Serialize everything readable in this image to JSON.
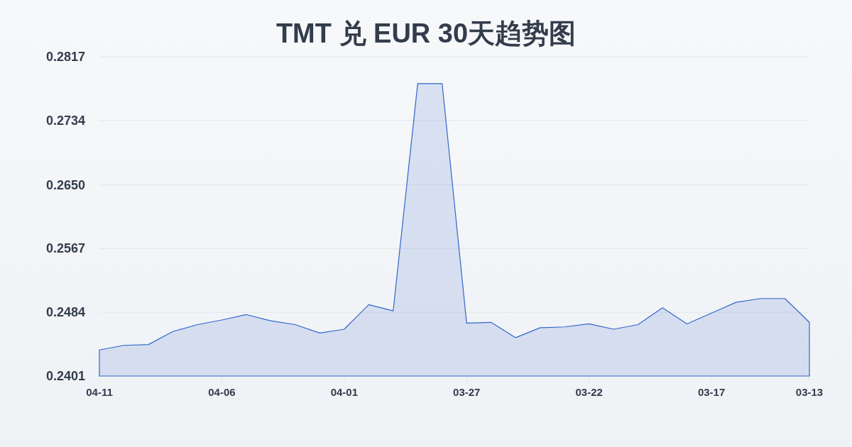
{
  "chart_data": {
    "type": "area",
    "title": "TMT 兑 EUR 30天趋势图",
    "x": [
      "--04-11",
      "--04-10",
      "--04-09",
      "--04-08",
      "--04-07",
      "--04-06",
      "--04-05",
      "--04-04",
      "--04-03",
      "--04-02",
      "--04-01",
      "--03-31",
      "--03-30",
      "--03-29",
      "--03-28",
      "--03-27",
      "--03-26",
      "--03-25",
      "--03-24",
      "--03-23",
      "--03-22",
      "--03-21",
      "--03-20",
      "--03-19",
      "--03-18",
      "--03-17",
      "--03-16",
      "--03-15",
      "--03-14",
      "--03-13"
    ],
    "values": [
      0.2435,
      0.2441,
      0.2442,
      0.2459,
      0.2468,
      0.2474,
      0.2481,
      0.2473,
      0.2468,
      0.2457,
      0.2462,
      0.2494,
      0.2486,
      0.2782,
      0.2782,
      0.247,
      0.2471,
      0.2451,
      0.2464,
      0.2465,
      0.2469,
      0.2462,
      0.2468,
      0.249,
      0.2469,
      0.2483,
      0.2497,
      0.2502,
      0.2502,
      0.2471
    ],
    "color": "#3366cc",
    "xlim": [
      "--04-11",
      "--03-13"
    ],
    "xticks": [
      {
        "value": "--04-11",
        "label": "04-11"
      },
      {
        "value": "--04-06",
        "label": "04-06"
      },
      {
        "value": "--04-01",
        "label": "04-01"
      },
      {
        "value": "--03-27",
        "label": "03-27"
      },
      {
        "value": "--03-22",
        "label": "03-22"
      },
      {
        "value": "--03-17",
        "label": "03-17"
      },
      {
        "value": "--03-13",
        "label": "03-13"
      }
    ],
    "ylim": [
      0.2401,
      0.2817
    ],
    "yticks": [
      0.2401,
      0.2484,
      0.2567,
      {
        "value": 0.265,
        "label": "0.2650"
      },
      0.2734,
      0.2817
    ],
    "grid": "y"
  }
}
